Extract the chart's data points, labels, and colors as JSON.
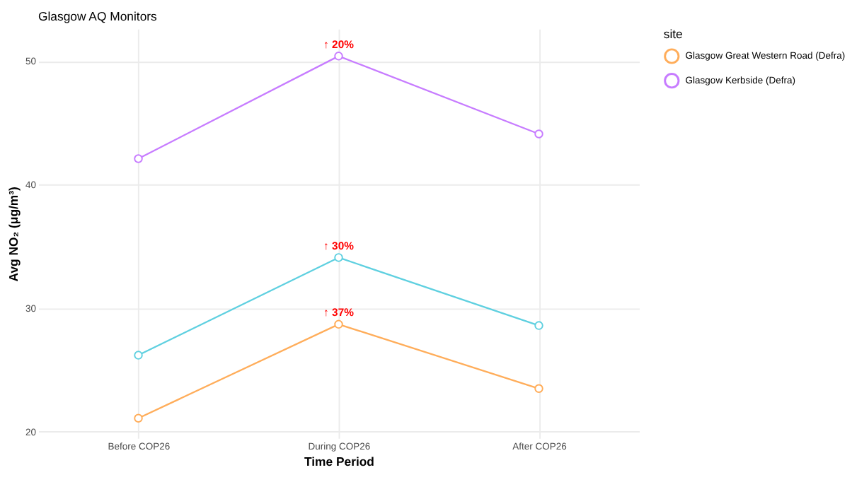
{
  "chart_data": {
    "type": "line",
    "title": "Glasgow AQ Monitors",
    "xlabel": "Time Period",
    "ylabel": "Avg NO₂ (μg/m³)",
    "legend_title": "site",
    "categories": [
      "Before COP26",
      "During COP26",
      "After COP26"
    ],
    "series": [
      {
        "color": "#5fd0e0",
        "values": [
          26.2,
          34.1,
          28.6
        ]
      },
      {
        "name": "Glasgow Great Western Road (Defra)",
        "color": "#ffad5a",
        "values": [
          21.1,
          28.7,
          23.5
        ]
      },
      {
        "name": "Glasgow Kerbside (Defra)",
        "color": "#c77cff",
        "values": [
          42.1,
          50.4,
          44.1
        ]
      }
    ],
    "annotations": [
      {
        "text": "↑ 20%",
        "x": "During COP26",
        "y": 50.4
      },
      {
        "text": "↑ 30%",
        "x": "During COP26",
        "y": 34.1
      },
      {
        "text": "↑ 37%",
        "x": "During COP26",
        "y": 28.7
      }
    ],
    "ylim": [
      19.5,
      52.6
    ],
    "yticks": [
      20,
      30,
      40,
      50
    ],
    "grid": true,
    "legend": "right",
    "marker": "circle",
    "line_style": "solid"
  }
}
